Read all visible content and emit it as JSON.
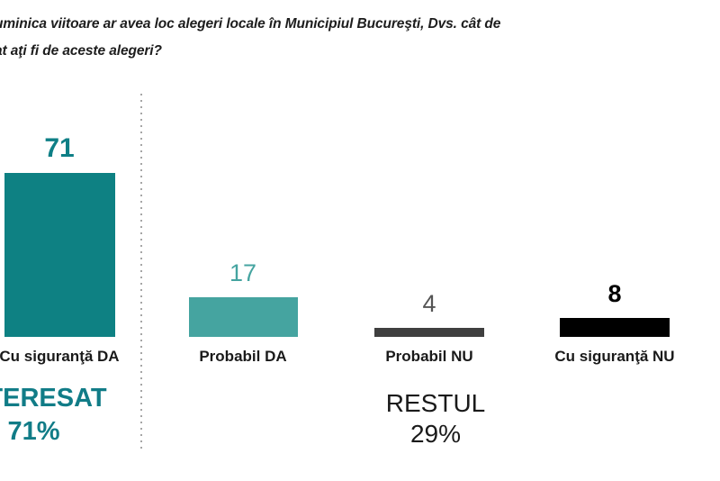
{
  "question": {
    "line1": "uminica viitoare ar avea loc alegeri locale în Municipiul Bucureşti, Dvs. cât de",
    "line2": "at aţi fi de aceste alegeri?"
  },
  "chart_data": {
    "type": "bar",
    "title": "uminica viitoare ar avea loc alegeri locale în Municipiul Bucureşti, Dvs. cât de at aţi fi de aceste alegeri?",
    "categories": [
      "Cu siguranţă DA",
      "Probabil DA",
      "Probabil NU",
      "Cu siguranţă NU"
    ],
    "values": [
      71,
      17,
      4,
      8
    ],
    "ylim": [
      0,
      75
    ],
    "grid": false,
    "legend": "none",
    "bar_colors": [
      "#0E8183",
      "#45A4A0",
      "#3F3F3F",
      "#000000"
    ],
    "value_colors": [
      "#0E7F86",
      "#45A4A0",
      "#555555",
      "#000000"
    ],
    "groups": [
      {
        "label": "INTERESAT",
        "percent": "71%",
        "color": "#117C87",
        "members": [
          "Cu siguranţă DA"
        ]
      },
      {
        "label": "RESTUL",
        "percent": "29%",
        "color": "#1A1A1A",
        "members": [
          "Probabil DA",
          "Probabil NU",
          "Cu siguranţă NU"
        ]
      }
    ]
  }
}
